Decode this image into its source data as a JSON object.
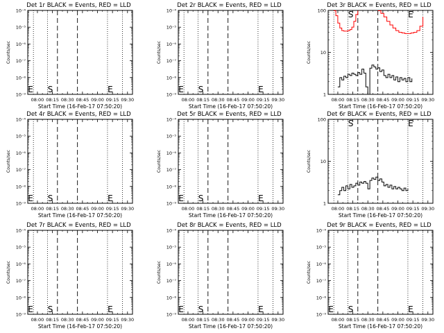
{
  "figure": {
    "xlabel": "Start Time (16-Feb-17 07:50:20)",
    "ylabel": "Counts/sec",
    "x_tick_labels": [
      "08:00",
      "08:15",
      "08:30",
      "08:45",
      "09:00",
      "09:15",
      "09:30"
    ],
    "colors": {
      "events": "#000000",
      "lld": "#ff0000",
      "axes": "#000000"
    }
  },
  "chart_data": [
    {
      "type": "line",
      "title": "Det 1r BLACK = Events, RED = LLD",
      "ylabel": "Counts/sec",
      "yscale": "log",
      "ylim": [
        1e-09,
        0.0001
      ],
      "y_tick_labels": [
        "10⁻⁹",
        "10⁻⁸",
        "10⁻⁷",
        "10⁻⁶",
        "10⁻⁵",
        "10⁻⁴"
      ],
      "markers": {
        "S": "08:15",
        "E": "09:10"
      },
      "series": []
    },
    {
      "type": "line",
      "title": "Det 2r BLACK = Events, RED = LLD",
      "ylabel": "Counts/sec",
      "yscale": "log",
      "ylim": [
        1e-09,
        0.0001
      ],
      "y_tick_labels": [
        "10⁻⁹",
        "10⁻⁸",
        "10⁻⁷",
        "10⁻⁶",
        "10⁻⁵",
        "10⁻⁴"
      ],
      "markers": {
        "S": "08:15",
        "E": "09:10"
      },
      "series": []
    },
    {
      "type": "line",
      "title": "Det 3r BLACK = Events, RED = LLD",
      "ylabel": "Counts/sec",
      "yscale": "log",
      "ylim": [
        1,
        100
      ],
      "y_tick_labels": [
        "1",
        "10",
        "100"
      ],
      "markers": {
        "S": "08:15",
        "E": "09:10"
      },
      "series": [
        {
          "color": "#ff0000",
          "x": [
            "07:56",
            "07:58",
            "08:00",
            "08:02",
            "08:04",
            "08:06",
            "08:08",
            "08:10",
            "08:12",
            "08:14",
            "08:16",
            "08:18",
            "08:20"
          ],
          "y": [
            98,
            75,
            50,
            38,
            33,
            32,
            32,
            33,
            35,
            40,
            55,
            80,
            98
          ]
        },
        {
          "color": "#ff0000",
          "x": [
            "08:40",
            "08:43",
            "08:46",
            "08:49",
            "08:52",
            "08:55",
            "08:58",
            "09:01",
            "09:04",
            "09:07",
            "09:10",
            "09:13",
            "09:16",
            "09:19",
            "09:22",
            "09:25"
          ],
          "y": [
            98,
            85,
            70,
            55,
            45,
            38,
            33,
            30,
            29,
            28,
            28,
            29,
            30,
            33,
            42,
            70
          ]
        },
        {
          "color": "#000000",
          "x": [
            "08:00",
            "08:02",
            "08:04",
            "08:06",
            "08:08",
            "08:10",
            "08:12",
            "08:14",
            "08:16",
            "08:18",
            "08:20",
            "08:22",
            "08:24",
            "08:26",
            "08:28",
            "08:30",
            "08:32",
            "08:34",
            "08:36",
            "08:38",
            "08:40",
            "08:42",
            "08:44",
            "08:46",
            "08:48",
            "08:50",
            "08:52",
            "08:54",
            "08:56",
            "08:58",
            "09:00",
            "09:02",
            "09:04",
            "09:06",
            "09:08",
            "09:10",
            "09:12",
            "09:14"
          ],
          "y": [
            1.5,
            2.5,
            2.2,
            2.7,
            2.5,
            3.0,
            2.8,
            3.2,
            3.0,
            2.8,
            3.3,
            3.0,
            4.0,
            3.2,
            1.5,
            1.0,
            4.2,
            5.0,
            4.5,
            4.0,
            4.3,
            3.5,
            3.8,
            2.8,
            2.5,
            3.0,
            2.5,
            2.8,
            2.2,
            2.6,
            2.0,
            2.5,
            2.2,
            2.4,
            2.0,
            2.5,
            2.0,
            2.4
          ]
        }
      ]
    },
    {
      "type": "line",
      "title": "Det 4r BLACK = Events, RED = LLD",
      "ylabel": "Counts/sec",
      "yscale": "log",
      "ylim": [
        1e-09,
        0.0001
      ],
      "y_tick_labels": [
        "10⁻⁹",
        "10⁻⁸",
        "10⁻⁷",
        "10⁻⁶",
        "10⁻⁵",
        "10⁻⁴"
      ],
      "markers": {
        "S": "08:15",
        "E": "09:10"
      },
      "series": []
    },
    {
      "type": "line",
      "title": "Det 5r BLACK = Events, RED = LLD",
      "ylabel": "Counts/sec",
      "yscale": "log",
      "ylim": [
        1e-09,
        0.0001
      ],
      "y_tick_labels": [
        "10⁻⁹",
        "10⁻⁸",
        "10⁻⁷",
        "10⁻⁶",
        "10⁻⁵",
        "10⁻⁴"
      ],
      "markers": {
        "S": "08:15",
        "E": "09:10"
      },
      "series": []
    },
    {
      "type": "line",
      "title": "Det 6r BLACK = Events, RED = LLD",
      "ylabel": "Counts/sec",
      "yscale": "log",
      "ylim": [
        1,
        100
      ],
      "y_tick_labels": [
        "1",
        "10",
        "100"
      ],
      "markers": {
        "S": "08:15",
        "E": "09:10"
      },
      "series": [
        {
          "color": "#000000",
          "x": [
            "08:00",
            "08:02",
            "08:04",
            "08:06",
            "08:08",
            "08:10",
            "08:12",
            "08:14",
            "08:16",
            "08:18",
            "08:20",
            "08:22",
            "08:24",
            "08:26",
            "08:28",
            "08:30",
            "08:32",
            "08:34",
            "08:36",
            "08:38",
            "08:40",
            "08:42",
            "08:44",
            "08:46",
            "08:48",
            "08:50",
            "08:52",
            "08:54",
            "08:56",
            "08:58",
            "09:00",
            "09:02",
            "09:04",
            "09:06",
            "09:08",
            "09:10"
          ],
          "y": [
            1.6,
            2.0,
            2.4,
            2.0,
            2.6,
            2.2,
            2.8,
            2.4,
            2.6,
            3.0,
            2.7,
            3.2,
            3.0,
            3.3,
            3.0,
            2.2,
            3.5,
            4.0,
            3.7,
            4.2,
            3.5,
            3.8,
            3.2,
            2.6,
            2.8,
            2.4,
            2.7,
            2.2,
            2.5,
            2.2,
            2.4,
            2.2,
            2.0,
            2.3,
            2.0,
            2.2
          ]
        }
      ]
    },
    {
      "type": "line",
      "title": "Det 7r BLACK = Events, RED = LLD",
      "ylabel": "Counts/sec",
      "yscale": "log",
      "ylim": [
        1e-09,
        0.0001
      ],
      "y_tick_labels": [
        "10⁻⁹",
        "10⁻⁸",
        "10⁻⁷",
        "10⁻⁶",
        "10⁻⁵",
        "10⁻⁴"
      ],
      "markers": {
        "S": "08:15",
        "E": "09:10"
      },
      "series": []
    },
    {
      "type": "line",
      "title": "Det 8r BLACK = Events, RED = LLD",
      "ylabel": "Counts/sec",
      "yscale": "log",
      "ylim": [
        1e-09,
        0.0001
      ],
      "y_tick_labels": [
        "10⁻⁹",
        "10⁻⁸",
        "10⁻⁷",
        "10⁻⁶",
        "10⁻⁵",
        "10⁻⁴"
      ],
      "markers": {
        "S": "08:15",
        "E": "09:10"
      },
      "series": []
    },
    {
      "type": "line",
      "title": "Det 9r BLACK = Events, RED = LLD",
      "ylabel": "Counts/sec",
      "yscale": "log",
      "ylim": [
        1e-09,
        0.0001
      ],
      "y_tick_labels": [
        "10⁻⁹",
        "10⁻⁸",
        "10⁻⁷",
        "10⁻⁶",
        "10⁻⁵",
        "10⁻⁴"
      ],
      "markers": {
        "S": "08:15",
        "E": "09:10"
      },
      "series": []
    }
  ]
}
